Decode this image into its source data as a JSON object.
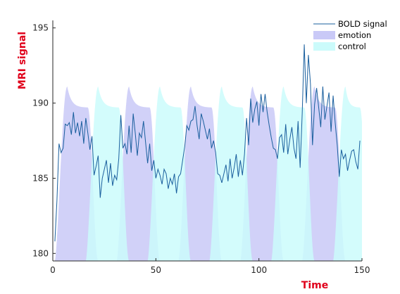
{
  "chart_data": {
    "type": "area",
    "xlabel": "Time",
    "ylabel": "MRI signal",
    "label_color": "#e0001b",
    "xlim": [
      0,
      150
    ],
    "ylim": [
      179.5,
      195.5
    ],
    "xticks": [
      0,
      50,
      100,
      150
    ],
    "yticks": [
      180,
      185,
      190,
      195
    ],
    "legend_position": "top-right",
    "grid": false,
    "baseline": 179.5,
    "series": [
      {
        "name": "emotion",
        "kind": "area",
        "color": "#c9c9f7",
        "blocks": [
          {
            "start": 1,
            "end": 18
          },
          {
            "start": 31,
            "end": 48
          },
          {
            "start": 61,
            "end": 78
          },
          {
            "start": 91,
            "end": 108
          },
          {
            "start": 121,
            "end": 138
          }
        ],
        "peak": 191.1,
        "plateau": 189.7
      },
      {
        "name": "control",
        "kind": "area",
        "color": "#cbfbfb",
        "blocks": [
          {
            "start": 16,
            "end": 33
          },
          {
            "start": 46,
            "end": 63
          },
          {
            "start": 76,
            "end": 93
          },
          {
            "start": 106,
            "end": 123
          },
          {
            "start": 136,
            "end": 150
          }
        ],
        "peak": 191.1,
        "plateau": 189.7
      },
      {
        "name": "BOLD signal",
        "kind": "line",
        "color": "#1a5f9e",
        "x_start": 1,
        "x_step": 1,
        "values": [
          180.8,
          183.5,
          187.3,
          186.7,
          187.0,
          188.6,
          188.5,
          188.7,
          187.9,
          189.4,
          188.0,
          188.7,
          187.8,
          188.8,
          187.3,
          189.0,
          188.0,
          186.9,
          187.8,
          185.2,
          185.8,
          186.5,
          183.7,
          185.0,
          185.6,
          186.2,
          184.7,
          186.0,
          184.5,
          185.2,
          184.9,
          186.3,
          189.2,
          187.0,
          187.3,
          186.6,
          188.5,
          186.7,
          189.3,
          188.0,
          186.5,
          188.0,
          187.7,
          188.8,
          187.4,
          186.0,
          187.3,
          185.5,
          186.2,
          185.0,
          185.6,
          185.2,
          184.6,
          185.6,
          185.3,
          184.3,
          185.0,
          184.6,
          185.3,
          184.0,
          185.1,
          185.3,
          186.2,
          187.1,
          188.5,
          188.2,
          188.8,
          188.9,
          189.8,
          188.5,
          187.6,
          189.3,
          188.8,
          188.2,
          187.6,
          188.3,
          187.0,
          187.5,
          186.7,
          185.3,
          185.2,
          184.7,
          185.3,
          185.9,
          184.8,
          186.3,
          185.0,
          185.7,
          186.6,
          185.1,
          186.2,
          185.2,
          186.6,
          189.0,
          187.2,
          190.3,
          188.7,
          189.6,
          190.1,
          188.5,
          190.6,
          189.4,
          190.6,
          189.4,
          188.5,
          187.7,
          187.0,
          186.9,
          186.3,
          187.7,
          187.9,
          186.7,
          188.6,
          186.6,
          187.6,
          188.4,
          187.0,
          186.3,
          188.8,
          185.7,
          189.3,
          193.9,
          190.0,
          193.2,
          191.3,
          187.2,
          189.9,
          191.0,
          189.7,
          188.4,
          191.1,
          188.9,
          189.8,
          190.7,
          188.1,
          190.5,
          188.7,
          187.2,
          185.1,
          186.9,
          186.3,
          186.6,
          185.5,
          186.2,
          186.8,
          186.9,
          186.1,
          185.6,
          187.5
        ]
      }
    ],
    "legend": [
      {
        "label": "BOLD signal",
        "kind": "line",
        "color": "#1a5f9e"
      },
      {
        "label": "emotion",
        "kind": "patch",
        "color": "#c9c9f7"
      },
      {
        "label": "control",
        "kind": "patch",
        "color": "#cbfbfb"
      }
    ]
  }
}
